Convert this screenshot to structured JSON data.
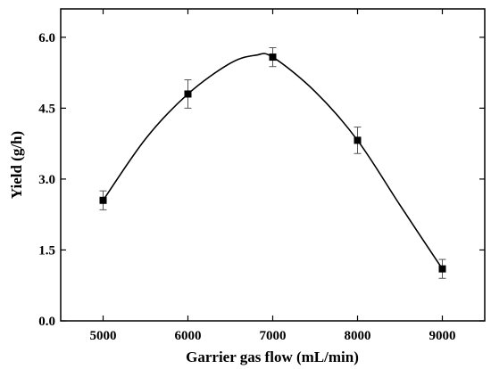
{
  "chart_data": {
    "type": "scatter",
    "xlabel": "Garrier gas flow (mL/min)",
    "ylabel": "Yield (g/h)",
    "xlim": [
      4500,
      9500
    ],
    "ylim": [
      0,
      6.6
    ],
    "xticks": [
      5000,
      6000,
      7000,
      8000,
      9000
    ],
    "xtick_labels": [
      "5000",
      "6000",
      "7000",
      "8000",
      "9000"
    ],
    "yticks": [
      0,
      1.5,
      3,
      4.5,
      6
    ],
    "ytick_labels": [
      "0.0",
      "1.5",
      "3.0",
      "4.5",
      "6.0"
    ],
    "grid": false,
    "marker": "square",
    "error_bars": true,
    "fit_curve": "smooth",
    "series": [
      {
        "x": [
          5000,
          6000,
          7000,
          8000,
          9000
        ],
        "y": [
          2.55,
          4.8,
          5.58,
          3.82,
          1.1
        ],
        "yerr": [
          0.2,
          0.3,
          0.2,
          0.28,
          0.2
        ]
      }
    ],
    "fit": {
      "x": [
        5000,
        5500,
        6000,
        6500,
        6800,
        7000,
        7500,
        8000,
        8500,
        9000
      ],
      "y": [
        2.55,
        3.85,
        4.8,
        5.45,
        5.62,
        5.58,
        4.85,
        3.82,
        2.45,
        1.1
      ]
    }
  }
}
